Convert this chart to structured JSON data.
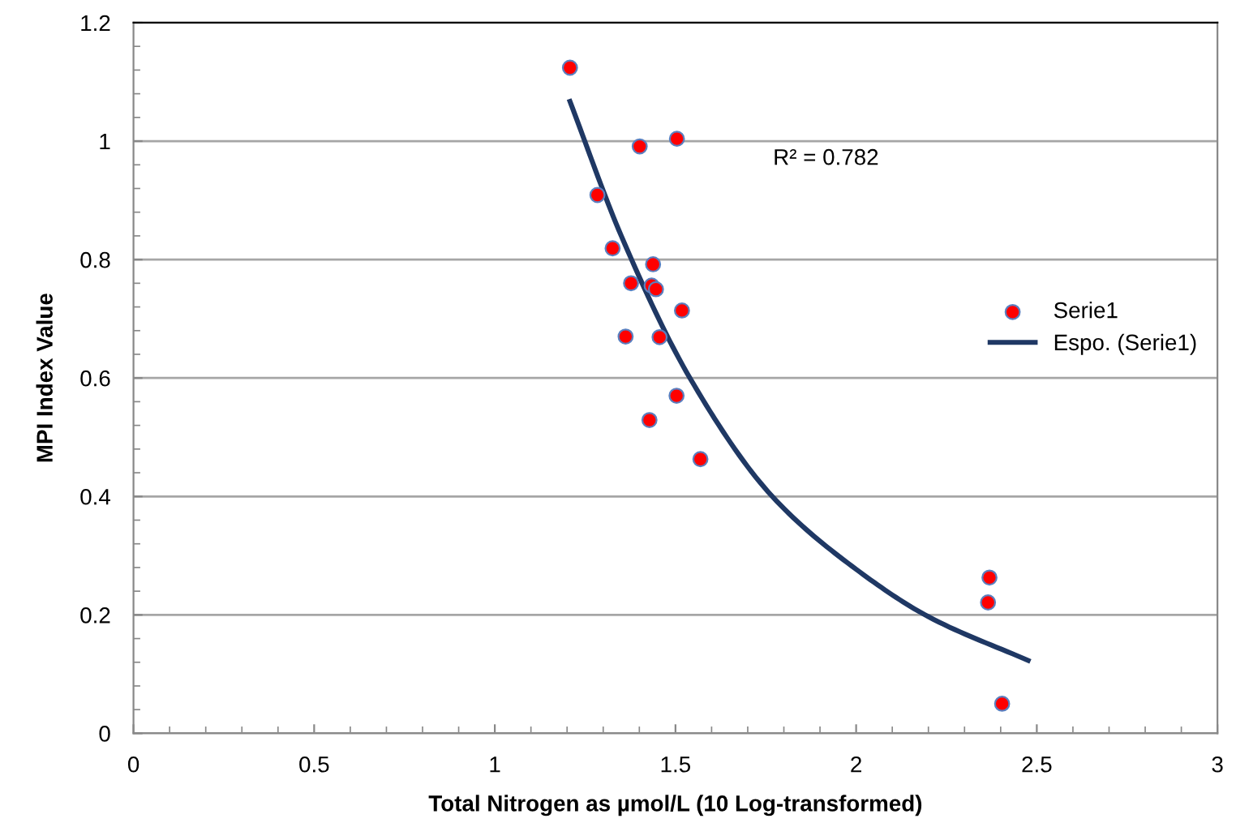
{
  "chart_data": {
    "type": "scatter",
    "xlabel": "Total Nitrogen as µmol/L (10 Log-transformed)",
    "ylabel": "MPI Index Value",
    "annotations": [
      "R² = 0.782"
    ],
    "xlim": [
      0,
      3
    ],
    "xticks": [
      0,
      0.5,
      1,
      1.5,
      2,
      2.5,
      3
    ],
    "ylim": [
      0,
      1.2
    ],
    "yticks": [
      0,
      0.2,
      0.4,
      0.6,
      0.8,
      1,
      1.2
    ],
    "grid": "y",
    "legend": "right",
    "series": [
      {
        "name": "Serie1",
        "marker": "circle",
        "color": "#ff0000",
        "x": [
          1.208,
          1.401,
          1.504,
          1.284,
          1.326,
          1.438,
          1.377,
          1.434,
          1.446,
          1.518,
          1.362,
          1.456,
          1.503,
          1.428,
          1.569,
          2.369,
          2.365,
          2.404
        ],
        "values": [
          1.124,
          0.991,
          1.004,
          0.909,
          0.819,
          0.792,
          0.76,
          0.756,
          0.75,
          0.714,
          0.67,
          0.669,
          0.57,
          0.529,
          0.463,
          0.263,
          0.221,
          0.05
        ]
      },
      {
        "name": "Espo. (Serie1)",
        "type": "line",
        "marker": "none",
        "color": "#1f3864",
        "x": [
          1.208,
          1.35,
          1.54,
          1.768,
          2.0,
          2.2,
          2.476
        ],
        "values": [
          1.067,
          0.84,
          0.6,
          0.4,
          0.277,
          0.197,
          0.123
        ]
      }
    ]
  }
}
